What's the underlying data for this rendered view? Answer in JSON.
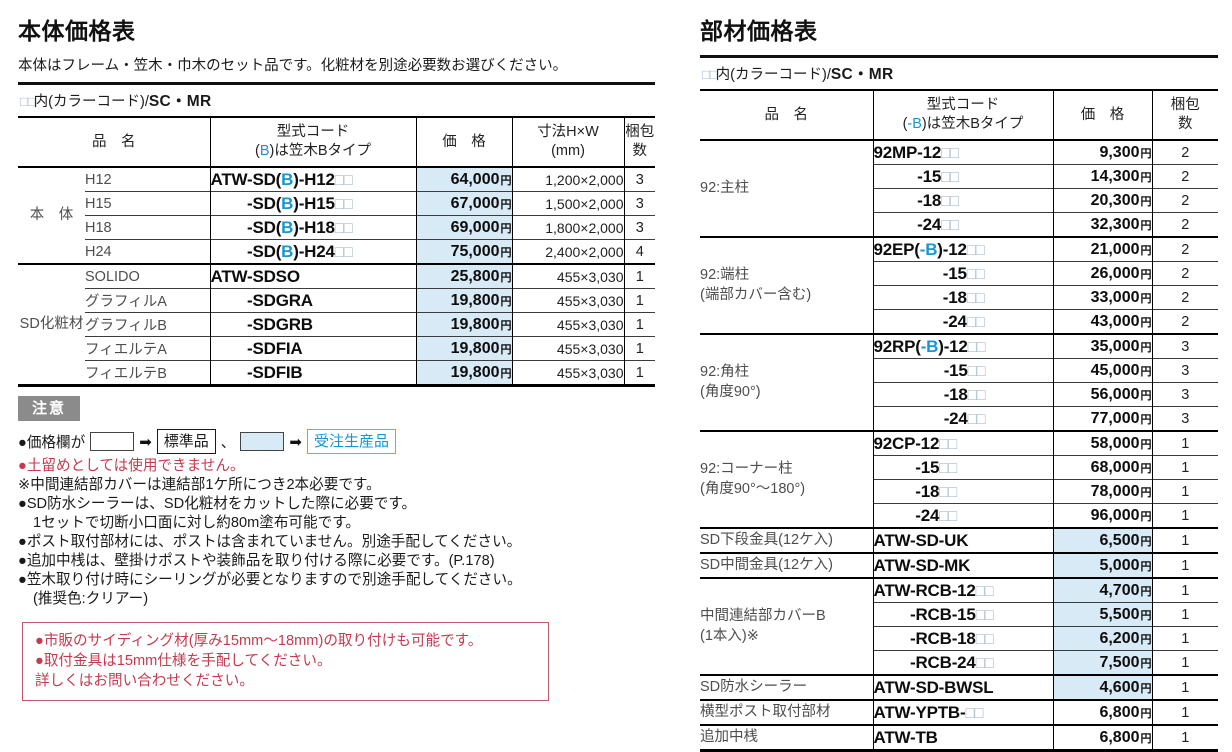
{
  "colors": {
    "accent_blue": "#1697d4",
    "price_order_bg": "#d7eaf6",
    "note_red": "#c63a50",
    "badge_gray": "#8b8b8b"
  },
  "left": {
    "title": "本体価格表",
    "subtitle": "本体はフレーム・笠木・巾木のセット品です。化粧材を別途必要数お選びください。",
    "colorcode_prefix": "□□内(カラーコード)/",
    "colorcode_value": "SC・MR"
  },
  "left_table": {
    "headers": {
      "name": "品　名",
      "code_line1": "型式コード",
      "code_line2": "(B)は笠木Bタイプ",
      "price": "価　格",
      "dim_line1": "寸法H×W",
      "dim_line2": "(mm)",
      "pack_line1": "梱包",
      "pack_line2": "数"
    },
    "groups": [
      {
        "label": "本　体",
        "rows": [
          {
            "name": "H12",
            "code": "ATW-SD(B)-H12□□",
            "price": "64,000円",
            "dim": "1,200×2,000",
            "pack": "3",
            "blue": true
          },
          {
            "name": "H15",
            "code": "-SD(B)-H15□□",
            "ghost": "ATW",
            "price": "67,000円",
            "dim": "1,500×2,000",
            "pack": "3",
            "blue": true
          },
          {
            "name": "H18",
            "code": "-SD(B)-H18□□",
            "ghost": "ATW",
            "price": "69,000円",
            "dim": "1,800×2,000",
            "pack": "3",
            "blue": true
          },
          {
            "name": "H24",
            "code": "-SD(B)-H24□□",
            "ghost": "ATW",
            "price": "75,000円",
            "dim": "2,400×2,000",
            "pack": "4",
            "blue": true
          }
        ]
      },
      {
        "label": "SD化粧材",
        "rows": [
          {
            "name": "SOLIDO",
            "code": "ATW-SDSO",
            "price": "25,800円",
            "dim": "455×3,030",
            "pack": "1",
            "blue": true
          },
          {
            "name": "グラフィルA",
            "code": "-SDGRA",
            "ghost": "ATW",
            "price": "19,800円",
            "dim": "455×3,030",
            "pack": "1",
            "blue": true
          },
          {
            "name": "グラフィルB",
            "code": "-SDGRB",
            "ghost": "ATW",
            "price": "19,800円",
            "dim": "455×3,030",
            "pack": "1",
            "blue": true
          },
          {
            "name": "フィエルテA",
            "code": "-SDFIA",
            "ghost": "ATW",
            "price": "19,800円",
            "dim": "455×3,030",
            "pack": "1",
            "blue": true
          },
          {
            "name": "フィエルテB",
            "code": "-SDFIB",
            "ghost": "ATW",
            "price": "19,800円",
            "dim": "455×3,030",
            "pack": "1",
            "blue": true
          }
        ]
      }
    ]
  },
  "notice": {
    "badge": "注意",
    "legend": {
      "prefix": "●価格欄が",
      "arrow": "➡",
      "standard_label": "標準品",
      "separator": "、",
      "order_label": "受注生産品"
    },
    "notes": [
      {
        "text": "●土留めとしては使用できません。"
      },
      {
        "text": "※中間連結部カバーは連結部1ケ所につき2本必要です。"
      },
      {
        "text": "●SD防水シーラーは、SD化粧材をカットした際に必要です。"
      },
      {
        "text": "1セットで切断小口面に対し約80m塗布可能です。"
      },
      {
        "text": "●ポスト取付部材には、ポストは含まれていません。別途手配してください。"
      },
      {
        "text": "●追加中桟は、壁掛けポストや装飾品を取り付ける際に必要です。(P.178)"
      },
      {
        "text": "●笠木取り付け時にシーリングが必要となりますので別途手配してください。"
      },
      {
        "text": "(推奨色:クリアー)"
      }
    ]
  },
  "red_box": {
    "lines": [
      "●市販のサイディング材(厚み15mm〜18mm)の取り付けも可能です。",
      "●取付金具は15mm仕様を手配してください。",
      "詳しくはお問い合わせください。"
    ]
  },
  "right": {
    "title": "部材価格表",
    "colorcode_prefix": "□□内(カラーコード)/",
    "colorcode_value": "SC・MR"
  },
  "right_table": {
    "headers": {
      "name": "品　名",
      "code_line1": "型式コード",
      "code_line2": "(-B)は笠木Bタイプ",
      "price": "価　格",
      "pack_line1": "梱包",
      "pack_line2": "数"
    },
    "groups": [
      {
        "label": "92:主柱",
        "rows": [
          {
            "code": "92MP-12□□",
            "price": "9,300円",
            "pack": "2"
          },
          {
            "code": "-15□□",
            "ghost": "92MP",
            "price": "14,300円",
            "pack": "2"
          },
          {
            "code": "-18□□",
            "ghost": "92MP",
            "price": "20,300円",
            "pack": "2"
          },
          {
            "code": "-24□□",
            "ghost": "92MP",
            "price": "32,300円",
            "pack": "2"
          }
        ]
      },
      {
        "label": "92:端柱",
        "label2": "(端部カバー含む)",
        "rows": [
          {
            "code": "92EP(-B)-12□□",
            "price": "21,000円",
            "pack": "2"
          },
          {
            "code": "-15□□",
            "ghost": "92EP(-B)",
            "price": "26,000円",
            "pack": "2"
          },
          {
            "code": "-18□□",
            "ghost": "92EP(-B)",
            "price": "33,000円",
            "pack": "2"
          },
          {
            "code": "-24□□",
            "ghost": "92EP(-B)",
            "price": "43,000円",
            "pack": "2"
          }
        ]
      },
      {
        "label": "92:角柱",
        "label2": "(角度90°)",
        "rows": [
          {
            "code": "92RP(-B)-12□□",
            "price": "35,000円",
            "pack": "3"
          },
          {
            "code": "-15□□",
            "ghost": "92RP(-B)",
            "price": "45,000円",
            "pack": "3"
          },
          {
            "code": "-18□□",
            "ghost": "92RP(-B)",
            "price": "56,000円",
            "pack": "3"
          },
          {
            "code": "-24□□",
            "ghost": "92RP(-B)",
            "price": "77,000円",
            "pack": "3"
          }
        ]
      },
      {
        "label": "92:コーナー柱",
        "label2": "(角度90°〜180°)",
        "rows": [
          {
            "code": "92CP-12□□",
            "price": "58,000円",
            "pack": "1"
          },
          {
            "code": "-15□□",
            "ghost": "92CP",
            "price": "68,000円",
            "pack": "1"
          },
          {
            "code": "-18□□",
            "ghost": "92CP",
            "price": "78,000円",
            "pack": "1"
          },
          {
            "code": "-24□□",
            "ghost": "92CP",
            "price": "96,000円",
            "pack": "1"
          }
        ]
      },
      {
        "label": "SD下段金具(12ケ入)",
        "rows": [
          {
            "code": "ATW-SD-UK",
            "price": "6,500円",
            "pack": "1",
            "blue": true
          }
        ]
      },
      {
        "label": "SD中間金具(12ケ入)",
        "rows": [
          {
            "code": "ATW-SD-MK",
            "price": "5,000円",
            "pack": "1",
            "blue": true
          }
        ]
      },
      {
        "label": "中間連結部カバーB",
        "label2": "(1本入)※",
        "rows": [
          {
            "code": "ATW-RCB-12□□",
            "price": "4,700円",
            "pack": "1",
            "blue": true
          },
          {
            "code": "-RCB-15□□",
            "ghost": "ATW",
            "price": "5,500円",
            "pack": "1",
            "blue": true
          },
          {
            "code": "-RCB-18□□",
            "ghost": "ATW",
            "price": "6,200円",
            "pack": "1",
            "blue": true
          },
          {
            "code": "-RCB-24□□",
            "ghost": "ATW",
            "price": "7,500円",
            "pack": "1",
            "blue": true
          }
        ]
      },
      {
        "label": "SD防水シーラー",
        "rows": [
          {
            "code": "ATW-SD-BWSL",
            "price": "4,600円",
            "pack": "1",
            "blue": true
          }
        ]
      },
      {
        "label": "横型ポスト取付部材",
        "rows": [
          {
            "code": "ATW-YPTB-□□",
            "price": "6,800円",
            "pack": "1"
          }
        ]
      },
      {
        "label": "追加中桟",
        "rows": [
          {
            "code": "ATW-TB",
            "price": "6,800円",
            "pack": "1"
          }
        ]
      }
    ]
  }
}
